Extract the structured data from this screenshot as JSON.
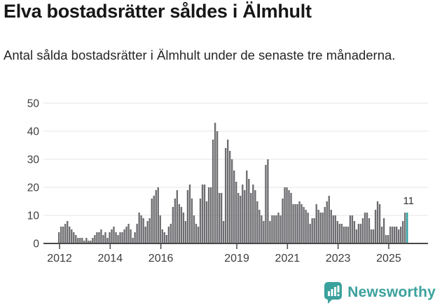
{
  "header": {
    "title": "Elva bostadsrätter såldes i Älmhult",
    "subtitle": "Antal sålda bostadsrätter i Älmhult under de senaste tre månaderna."
  },
  "chart_data": {
    "type": "bar",
    "title": "Elva bostadsrätter såldes i Älmhult",
    "subtitle": "Antal sålda bostadsrätter i Älmhult under de senaste tre månaderna.",
    "frequency": "monthly",
    "x_start": "2012-01",
    "x_end": "2025-10",
    "values": [
      4,
      6,
      6,
      7,
      8,
      6,
      5,
      4,
      3,
      2,
      2,
      2,
      1,
      2,
      1,
      1,
      2,
      3,
      4,
      4,
      5,
      3,
      4,
      2,
      4,
      5,
      6,
      4,
      3,
      4,
      4,
      5,
      6,
      7,
      5,
      2,
      4,
      7,
      11,
      10,
      9,
      6,
      8,
      9,
      16,
      17,
      19,
      20,
      10,
      5,
      4,
      3,
      6,
      7,
      13,
      16,
      19,
      14,
      13,
      11,
      8,
      19,
      21,
      16,
      10,
      7,
      6,
      16,
      21,
      21,
      15,
      20,
      20,
      37,
      43,
      40,
      18,
      18,
      8,
      34,
      37,
      33,
      30,
      26,
      22,
      18,
      17,
      21,
      19,
      26,
      23,
      18,
      21,
      19,
      15,
      12,
      10,
      8,
      28,
      30,
      8,
      10,
      10,
      10,
      11,
      10,
      16,
      20,
      20,
      19,
      18,
      14,
      14,
      14,
      15,
      14,
      13,
      12,
      11,
      7,
      9,
      9,
      14,
      12,
      11,
      11,
      13,
      15,
      17,
      12,
      10,
      10,
      8,
      7,
      7,
      6,
      6,
      6,
      10,
      10,
      8,
      5,
      7,
      7,
      9,
      11,
      11,
      9,
      5,
      5,
      12,
      15,
      14,
      6,
      9,
      3,
      3,
      6,
      6,
      6,
      6,
      5,
      6,
      8,
      11,
      11
    ],
    "highlight_last": true,
    "last_value": 11,
    "last_value_label": "11",
    "y_ticks": [
      0,
      10,
      20,
      30,
      40,
      50
    ],
    "ylim": [
      0,
      50
    ],
    "year_tick_labels": [
      "2012",
      "2014",
      "2016",
      "2019",
      "2021",
      "2023",
      "2025"
    ],
    "year_tick_years": [
      2012,
      2014,
      2016,
      2019,
      2021,
      2023,
      2025
    ],
    "grid": "horizontal",
    "legend": "none",
    "bar_color": "#6d6d71",
    "highlight_color": "#2aa0a2",
    "axis_color": "#494949",
    "grid_color": "#e4e4e4",
    "tick_label_color": "#3d3d3d",
    "annotation_color": "#333333"
  },
  "footer": {
    "brand": "Newsworthy",
    "brand_color": "#3ba19c"
  }
}
